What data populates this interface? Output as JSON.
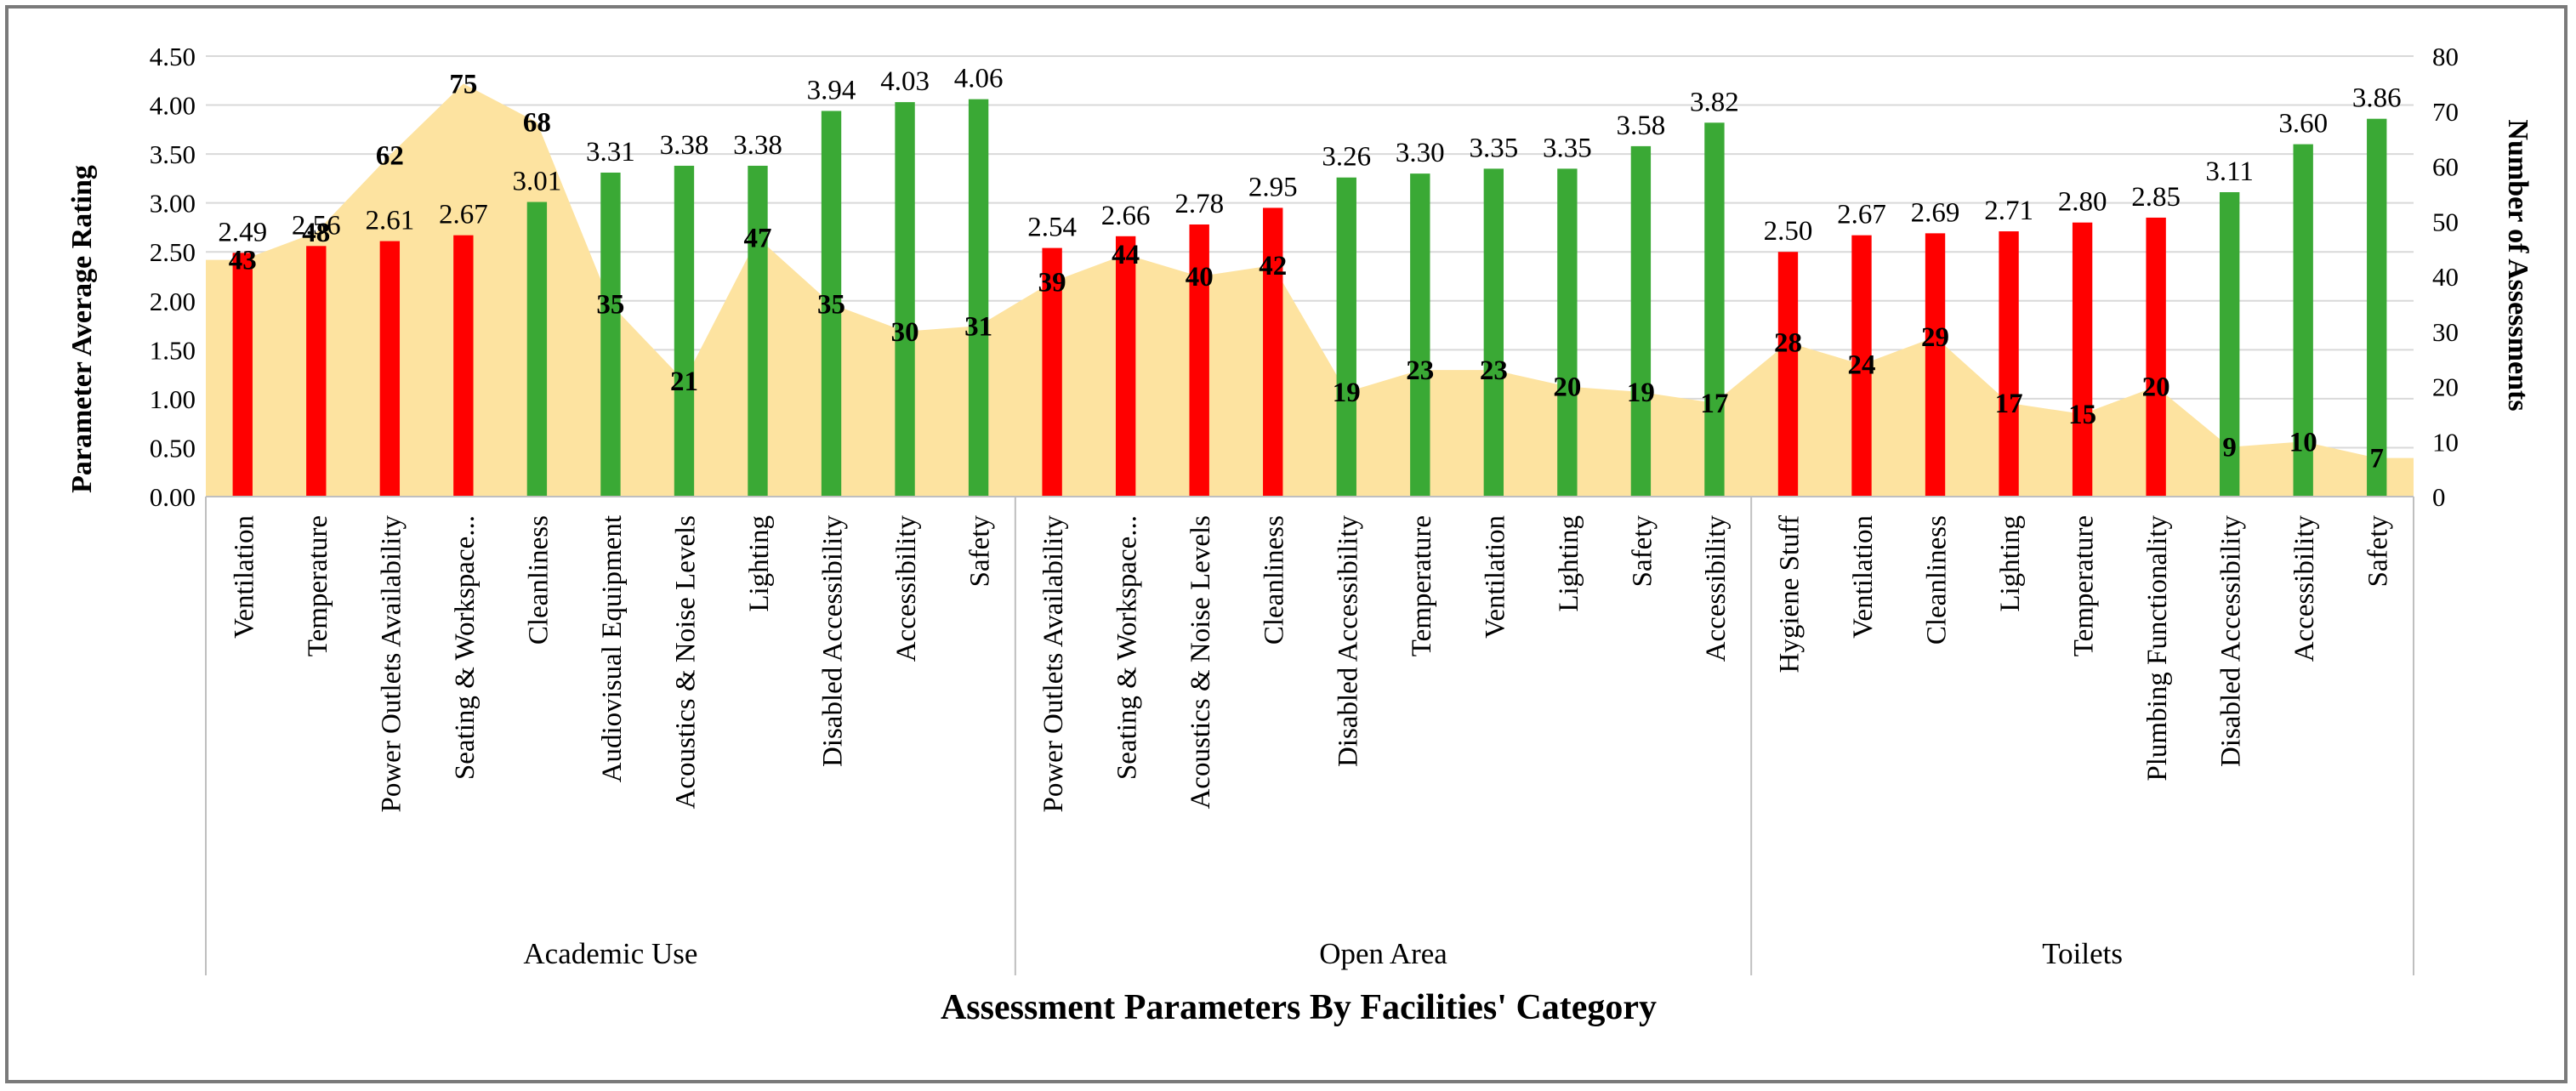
{
  "chart_data": {
    "type": "bar",
    "title": "",
    "xlabel": "Assessment Parameters By Facilities' Category",
    "ylabel": "Parameter Average Rating",
    "ylabel_right": "Number of Assessments",
    "ylim": [
      0,
      4.5
    ],
    "ylim_right": [
      0,
      80
    ],
    "y_ticks": [
      "0.00",
      "0.50",
      "1.00",
      "1.50",
      "2.00",
      "2.50",
      "3.00",
      "3.50",
      "4.00",
      "4.50"
    ],
    "y_ticks_right": [
      "0",
      "10",
      "20",
      "30",
      "40",
      "50",
      "60",
      "70",
      "80"
    ],
    "legend": "none",
    "colors": {
      "low": "#ff0000",
      "high": "#3aa935",
      "area": "#fde3a0"
    },
    "groups": [
      {
        "name": "Academic Use",
        "items": [
          {
            "label": "Ventilation",
            "rating": 2.49,
            "rating_label": "2.49",
            "count": 43,
            "color": "#ff0000"
          },
          {
            "label": "Temperature",
            "rating": 2.56,
            "rating_label": "2.56",
            "count": 48,
            "color": "#ff0000"
          },
          {
            "label": "Power Outlets Availability",
            "rating": 2.61,
            "rating_label": "2.61",
            "count": 62,
            "color": "#ff0000"
          },
          {
            "label": "Seating & Workspace...",
            "rating": 2.67,
            "rating_label": "2.67",
            "count": 75,
            "color": "#ff0000"
          },
          {
            "label": "Cleanliness",
            "rating": 3.01,
            "rating_label": "3.01",
            "count": 68,
            "color": "#3aa935"
          },
          {
            "label": "Audiovisual Equipment",
            "rating": 3.31,
            "rating_label": "3.31",
            "count": 35,
            "color": "#3aa935"
          },
          {
            "label": "Acoustics & Noise Levels",
            "rating": 3.38,
            "rating_label": "3.38",
            "count": 21,
            "color": "#3aa935"
          },
          {
            "label": "Lighting",
            "rating": 3.38,
            "rating_label": "3.38",
            "count": 47,
            "color": "#3aa935"
          },
          {
            "label": "Disabled Accessibility",
            "rating": 3.94,
            "rating_label": "3.94",
            "count": 35,
            "color": "#3aa935"
          },
          {
            "label": "Accessibility",
            "rating": 4.03,
            "rating_label": "4.03",
            "count": 30,
            "color": "#3aa935"
          },
          {
            "label": "Safety",
            "rating": 4.06,
            "rating_label": "4.06",
            "count": 31,
            "color": "#3aa935"
          }
        ]
      },
      {
        "name": "Open Area",
        "items": [
          {
            "label": "Power Outlets Availability",
            "rating": 2.54,
            "rating_label": "2.54",
            "count": 39,
            "color": "#ff0000"
          },
          {
            "label": "Seating & Workspace...",
            "rating": 2.66,
            "rating_label": "2.66",
            "count": 44,
            "color": "#ff0000"
          },
          {
            "label": "Acoustics & Noise Levels",
            "rating": 2.78,
            "rating_label": "2.78",
            "count": 40,
            "color": "#ff0000"
          },
          {
            "label": "Cleanliness",
            "rating": 2.95,
            "rating_label": "2.95",
            "count": 42,
            "color": "#ff0000"
          },
          {
            "label": "Disabled Accessibility",
            "rating": 3.26,
            "rating_label": "3.26",
            "count": 19,
            "color": "#3aa935"
          },
          {
            "label": "Temperature",
            "rating": 3.3,
            "rating_label": "3.30",
            "count": 23,
            "color": "#3aa935"
          },
          {
            "label": "Ventilation",
            "rating": 3.35,
            "rating_label": "3.35",
            "count": 23,
            "color": "#3aa935"
          },
          {
            "label": "Lighting",
            "rating": 3.35,
            "rating_label": "3.35",
            "count": 20,
            "color": "#3aa935"
          },
          {
            "label": "Safety",
            "rating": 3.58,
            "rating_label": "3.58",
            "count": 19,
            "color": "#3aa935"
          },
          {
            "label": "Accessibility",
            "rating": 3.82,
            "rating_label": "3.82",
            "count": 17,
            "color": "#3aa935"
          }
        ]
      },
      {
        "name": "Toilets",
        "items": [
          {
            "label": "Hygiene Stuff",
            "rating": 2.5,
            "rating_label": "2.50",
            "count": 28,
            "color": "#ff0000"
          },
          {
            "label": "Ventilation",
            "rating": 2.67,
            "rating_label": "2.67",
            "count": 24,
            "color": "#ff0000"
          },
          {
            "label": "Cleanliness",
            "rating": 2.69,
            "rating_label": "2.69",
            "count": 29,
            "color": "#ff0000"
          },
          {
            "label": "Lighting",
            "rating": 2.71,
            "rating_label": "2.71",
            "count": 17,
            "color": "#ff0000"
          },
          {
            "label": "Temperature",
            "rating": 2.8,
            "rating_label": "2.80",
            "count": 15,
            "color": "#ff0000"
          },
          {
            "label": "Plumbing Functionality",
            "rating": 2.85,
            "rating_label": "2.85",
            "count": 20,
            "color": "#ff0000"
          },
          {
            "label": "Disabled Accessibility",
            "rating": 3.11,
            "rating_label": "3.11",
            "count": 9,
            "color": "#3aa935"
          },
          {
            "label": "Accessibility",
            "rating": 3.6,
            "rating_label": "3.60",
            "count": 10,
            "color": "#3aa935"
          },
          {
            "label": "Safety",
            "rating": 3.86,
            "rating_label": "3.86",
            "count": 7,
            "color": "#3aa935"
          }
        ]
      }
    ]
  }
}
